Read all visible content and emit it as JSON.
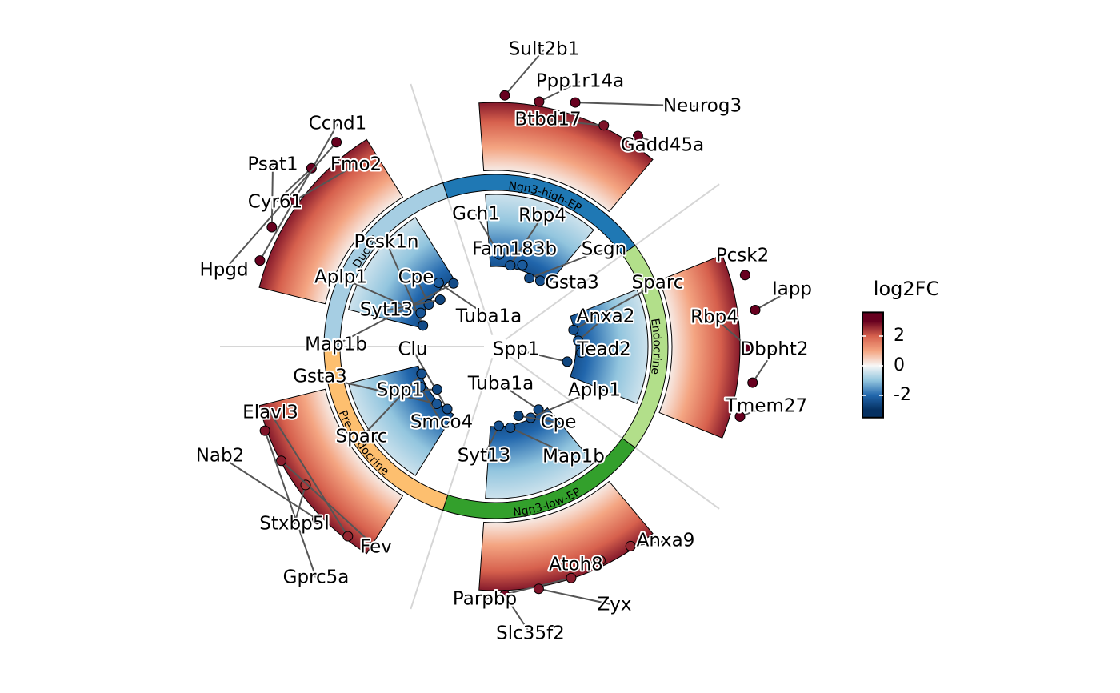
{
  "chart_data": {
    "type": "radial-de",
    "legend_title": "log2FC",
    "clim": [
      -3.5,
      3.6
    ],
    "cticks": [
      -2,
      0,
      2
    ],
    "groups": [
      {
        "name": "Ngn3-high-EP",
        "color": "#1f78b4",
        "up": [
          {
            "label": "Sult2b1",
            "value": 3.0
          },
          {
            "label": "Ppp1r14a",
            "value": 2.9
          },
          {
            "label": "Neurog3",
            "value": 3.2
          },
          {
            "label": "Btbd17",
            "value": 2.8
          },
          {
            "label": "Gadd45a",
            "value": 3.1
          }
        ],
        "down": [
          {
            "label": "Gch1",
            "value": -2.0
          },
          {
            "label": "Rbp4",
            "value": -2.3
          },
          {
            "label": "Fam183b",
            "value": -2.2
          },
          {
            "label": "Scgn",
            "value": -2.5
          },
          {
            "label": "Gsta3",
            "value": -2.4
          }
        ]
      },
      {
        "name": "Endocrine",
        "color": "#b2df8a",
        "up": [
          {
            "label": "Pcsk2",
            "value": 3.3
          },
          {
            "label": "Iapp",
            "value": 3.4
          },
          {
            "label": "Rbp4",
            "value": 3.0
          },
          {
            "label": "Dbpht2",
            "value": 3.3
          },
          {
            "label": "Tmem27",
            "value": 3.1
          }
        ],
        "down": [
          {
            "label": "Sparc",
            "value": -2.4
          },
          {
            "label": "Anxa2",
            "value": -2.3
          },
          {
            "label": "Tead2",
            "value": -2.2
          },
          {
            "label": "Spp1",
            "value": -2.6
          }
        ]
      },
      {
        "name": "Ngn3-low-EP",
        "color": "#33a02c",
        "up": [
          {
            "label": "Anxa9",
            "value": 2.6
          },
          {
            "label": "Atoh8",
            "value": 2.5
          },
          {
            "label": "Parpbp",
            "value": 2.7
          },
          {
            "label": "Zyx",
            "value": 2.8
          },
          {
            "label": "Slc35f2",
            "value": 2.9
          }
        ],
        "down": [
          {
            "label": "Tuba1a",
            "value": -2.5
          },
          {
            "label": "Aplp1",
            "value": -2.4
          },
          {
            "label": "Cpe",
            "value": -2.6
          },
          {
            "label": "Map1b",
            "value": -2.3
          },
          {
            "label": "Syt13",
            "value": -2.4
          }
        ]
      },
      {
        "name": "Pre-endocrine",
        "color": "#fdbf6f",
        "up": [
          {
            "label": "Elavl3",
            "value": 2.6
          },
          {
            "label": "Nab2",
            "value": 2.9
          },
          {
            "label": "Stxbp5l",
            "value": 2.4
          },
          {
            "label": "Fev",
            "value": 2.7
          },
          {
            "label": "Gprc5a",
            "value": 2.8
          }
        ],
        "down": [
          {
            "label": "Clu",
            "value": -2.4
          },
          {
            "label": "Gsta3",
            "value": -2.3
          },
          {
            "label": "Spp1",
            "value": -2.6
          },
          {
            "label": "Smco4",
            "value": -2.2
          },
          {
            "label": "Sparc",
            "value": -2.4
          }
        ]
      },
      {
        "name": "Ductal",
        "color": "#a6cee3",
        "up": [
          {
            "label": "Ccnd1",
            "value": 3.0
          },
          {
            "label": "Psat1",
            "value": 3.1
          },
          {
            "label": "Fmo2",
            "value": 2.9
          },
          {
            "label": "Cyr61",
            "value": 3.2
          },
          {
            "label": "Hpgd",
            "value": 3.3
          }
        ],
        "down": [
          {
            "label": "Pcsk1n",
            "value": -2.5
          },
          {
            "label": "Aplp1",
            "value": -2.3
          },
          {
            "label": "Cpe",
            "value": -2.4
          },
          {
            "label": "Syt13",
            "value": -2.6
          },
          {
            "label": "Tuba1a",
            "value": -2.2
          },
          {
            "label": "Map1b",
            "value": -2.5
          }
        ]
      }
    ]
  }
}
